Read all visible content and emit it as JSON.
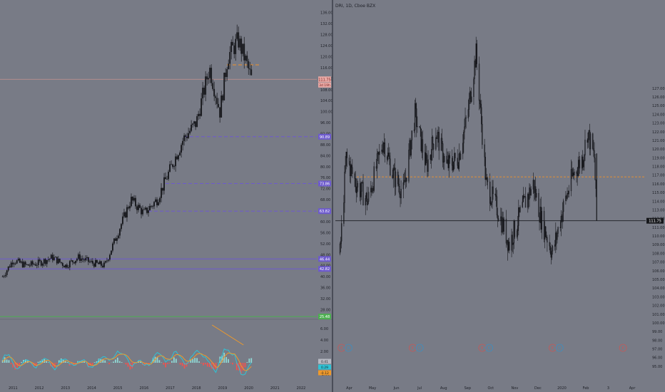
{
  "colors": {
    "background": "#787b86",
    "divider": "#3b3e48",
    "candle": "#141519",
    "axis_text": "#1f2128",
    "resistance_orange": "#f0922a",
    "support_purple": "#6d5acd",
    "green_line": "#4caf50",
    "last_price_line": "#c5948e",
    "last_price_badge": "#e8a9a5",
    "macd_line": "#2ec4d6",
    "signal_line": "#f09a2a",
    "hist_pos": "#8fd9d5",
    "hist_neg": "#ef5350"
  },
  "left_panel": {
    "y_axis_ticks": [
      "136.00",
      "132.00",
      "128.00",
      "124.00",
      "120.00",
      "116.00",
      "112.00",
      "108.00",
      "104.00",
      "100.00",
      "96.00",
      "92.00",
      "88.00",
      "84.00",
      "80.00",
      "76.00",
      "72.00",
      "68.00",
      "64.00",
      "60.00",
      "56.00",
      "52.00",
      "48.00",
      "44.00",
      "40.00",
      "36.00",
      "32.00",
      "28.00"
    ],
    "x_axis_labels": [
      "2011",
      "2012",
      "2013",
      "2014",
      "2015",
      "2016",
      "2017",
      "2018",
      "2019",
      "2020",
      "2021",
      "2022"
    ],
    "price_tags": {
      "last": "111.75",
      "countdown": "3d 19h",
      "level_1": "90.89",
      "level_2": "73.86",
      "level_3": "63.82",
      "level_4": "46.44",
      "level_5": "42.82",
      "level_6": "25.48"
    },
    "indicator_ticks": [
      "6.00",
      "4.00",
      "2.00",
      "-2.00"
    ],
    "indicator_tags": {
      "a": "0.41",
      "b": "0.29",
      "c": "-0.12"
    }
  },
  "right_panel": {
    "legend": "DRI, 1D, Cboe BZX",
    "y_axis_ticks": [
      "127.00",
      "126.00",
      "125.00",
      "124.00",
      "123.00",
      "122.00",
      "121.00",
      "120.00",
      "119.00",
      "118.00",
      "117.00",
      "116.00",
      "115.00",
      "114.00",
      "113.00",
      "112.00",
      "111.00",
      "110.00",
      "109.00",
      "108.00",
      "107.00",
      "106.00",
      "105.00",
      "104.00",
      "103.00",
      "102.00",
      "101.00",
      "100.00",
      "99.00",
      "98.00",
      "97.00",
      "96.00",
      "95.00"
    ],
    "x_axis_labels": [
      "Apr",
      "May",
      "Jun",
      "Jul",
      "Aug",
      "Sep",
      "Oct",
      "Nov",
      "Dec",
      "2020",
      "Feb",
      "3",
      "Apr"
    ],
    "last_price": "111.75",
    "event_markers": [
      "E",
      "D",
      "E",
      "D",
      "E",
      "D",
      "E",
      "D",
      "E"
    ]
  },
  "chart_data": [
    {
      "type": "candlestick",
      "title": "",
      "xlabel": "",
      "ylabel": "",
      "x_range": [
        2010.5,
        2022.6
      ],
      "ylim": [
        25,
        138
      ],
      "approx_close_path": [
        {
          "x": 2010.6,
          "y": 40
        },
        {
          "x": 2011.0,
          "y": 46
        },
        {
          "x": 2011.5,
          "y": 44
        },
        {
          "x": 2012.0,
          "y": 45
        },
        {
          "x": 2012.5,
          "y": 47
        },
        {
          "x": 2013.0,
          "y": 44
        },
        {
          "x": 2013.5,
          "y": 47
        },
        {
          "x": 2014.0,
          "y": 45
        },
        {
          "x": 2014.5,
          "y": 44
        },
        {
          "x": 2015.0,
          "y": 56
        },
        {
          "x": 2015.5,
          "y": 68
        },
        {
          "x": 2016.0,
          "y": 63
        },
        {
          "x": 2016.5,
          "y": 68
        },
        {
          "x": 2017.0,
          "y": 79
        },
        {
          "x": 2017.5,
          "y": 90
        },
        {
          "x": 2018.0,
          "y": 96
        },
        {
          "x": 2018.5,
          "y": 116
        },
        {
          "x": 2018.9,
          "y": 100
        },
        {
          "x": 2019.2,
          "y": 120
        },
        {
          "x": 2019.6,
          "y": 126
        },
        {
          "x": 2019.9,
          "y": 118
        },
        {
          "x": 2020.1,
          "y": 112
        }
      ],
      "horizontal_levels": [
        {
          "value": 117.0,
          "style": "dashed",
          "color": "orange"
        },
        {
          "value": 111.75,
          "style": "solid",
          "color": "pink"
        },
        {
          "value": 90.89,
          "style": "dashed",
          "color": "purple"
        },
        {
          "value": 73.86,
          "style": "dashed",
          "color": "purple"
        },
        {
          "value": 63.82,
          "style": "dashed",
          "color": "purple"
        },
        {
          "value": 46.44,
          "style": "solid",
          "color": "purple"
        },
        {
          "value": 42.82,
          "style": "solid",
          "color": "purple"
        },
        {
          "value": 25.48,
          "style": "solid",
          "color": "green"
        }
      ]
    },
    {
      "type": "candlestick",
      "title": "DRI, 1D, Cboe BZX",
      "xlabel": "",
      "ylabel": "",
      "ylim": [
        94.5,
        136.5
      ],
      "approx_close_path": [
        {
          "x": "2019-03-20",
          "y": 108
        },
        {
          "x": "2019-03-28",
          "y": 119
        },
        {
          "x": "2019-04-10",
          "y": 116
        },
        {
          "x": "2019-04-25",
          "y": 114
        },
        {
          "x": "2019-05-15",
          "y": 121
        },
        {
          "x": "2019-05-28",
          "y": 117
        },
        {
          "x": "2019-06-10",
          "y": 115
        },
        {
          "x": "2019-06-25",
          "y": 124
        },
        {
          "x": "2019-07-10",
          "y": 118
        },
        {
          "x": "2019-07-22",
          "y": 122
        },
        {
          "x": "2019-08-05",
          "y": 118
        },
        {
          "x": "2019-08-20",
          "y": 119
        },
        {
          "x": "2019-09-01",
          "y": 124
        },
        {
          "x": "2019-09-12",
          "y": 131
        },
        {
          "x": "2019-09-25",
          "y": 116
        },
        {
          "x": "2019-10-10",
          "y": 113
        },
        {
          "x": "2019-10-25",
          "y": 109
        },
        {
          "x": "2019-11-10",
          "y": 113
        },
        {
          "x": "2019-11-25",
          "y": 116
        },
        {
          "x": "2019-12-05",
          "y": 112
        },
        {
          "x": "2019-12-20",
          "y": 108
        },
        {
          "x": "2020-01-02",
          "y": 113
        },
        {
          "x": "2020-01-15",
          "y": 117
        },
        {
          "x": "2020-01-28",
          "y": 119
        },
        {
          "x": "2020-02-03",
          "y": 122
        },
        {
          "x": "2020-02-12",
          "y": 119
        },
        {
          "x": "2020-02-15",
          "y": 111.75
        }
      ],
      "horizontal_levels": [
        {
          "value": 116.8,
          "style": "dashed",
          "color": "orange"
        },
        {
          "value": 111.75,
          "style": "solid",
          "color": "black"
        }
      ]
    }
  ]
}
